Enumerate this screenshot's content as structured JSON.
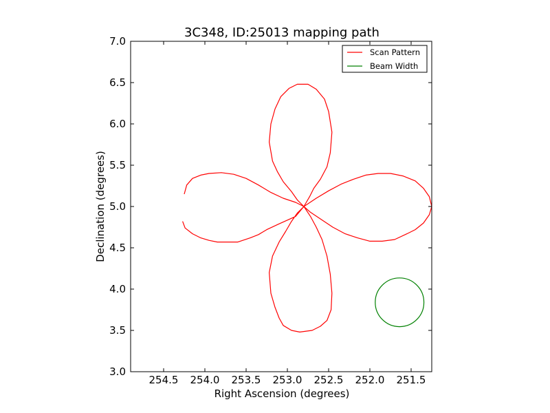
{
  "chart_data": {
    "type": "line",
    "title": "3C348, ID:25013 mapping path",
    "xlabel": "Right Ascension (degrees)",
    "ylabel": "Declination (degrees)",
    "xlim": [
      254.9,
      251.25
    ],
    "ylim": [
      3.0,
      7.0
    ],
    "x_ticks": [
      254.5,
      254.0,
      253.5,
      253.0,
      252.5,
      252.0,
      251.5
    ],
    "x_tick_labels": [
      "254.5",
      "254.0",
      "253.5",
      "253.0",
      "252.5",
      "252.0",
      "251.5"
    ],
    "y_ticks": [
      3.0,
      3.5,
      4.0,
      4.5,
      5.0,
      5.5,
      6.0,
      6.5,
      7.0
    ],
    "y_tick_labels": [
      "3.0",
      "3.5",
      "4.0",
      "4.5",
      "5.0",
      "5.5",
      "6.0",
      "6.5",
      "7.0"
    ],
    "grid": false,
    "legend_position": "top-right",
    "colors": {
      "scan": "#ff0000",
      "beam": "#008000",
      "axes": "#000000",
      "background": "#ffffff"
    },
    "series": [
      {
        "name": "Scan Pattern",
        "color": "#ff0000",
        "x": [
          254.27,
          254.24,
          254.15,
          254.05,
          253.95,
          253.85,
          253.75,
          253.6,
          253.45,
          253.35,
          253.25,
          253.1,
          252.9,
          252.8,
          252.73,
          252.68,
          252.6,
          252.52,
          252.48,
          252.46,
          252.5,
          252.55,
          252.65,
          252.75,
          252.88,
          252.98,
          253.08,
          253.15,
          253.2,
          253.22,
          253.18,
          253.12,
          253.05,
          252.95,
          252.88,
          252.8,
          252.72,
          252.6,
          252.45,
          252.3,
          252.15,
          252.0,
          251.85,
          251.7,
          251.55,
          251.45,
          251.35,
          251.28,
          251.25,
          251.28,
          251.35,
          251.45,
          251.6,
          251.75,
          251.9,
          252.05,
          252.2,
          252.35,
          252.5,
          252.65,
          252.8,
          252.88,
          252.95,
          253.02,
          253.1,
          253.18,
          253.22,
          253.2,
          253.15,
          253.1,
          253.05,
          252.95,
          252.85,
          252.7,
          252.6,
          252.52,
          252.47,
          252.46,
          252.48,
          252.52,
          252.58,
          252.65,
          252.72,
          252.8,
          252.9,
          253.05,
          253.2,
          253.35,
          253.5,
          253.65,
          253.8,
          253.95,
          254.05,
          254.15,
          254.22,
          254.25
        ],
        "y": [
          4.82,
          4.74,
          4.67,
          4.62,
          4.59,
          4.57,
          4.57,
          4.57,
          4.62,
          4.66,
          4.72,
          4.79,
          4.88,
          5.0,
          5.12,
          5.22,
          5.33,
          5.48,
          5.65,
          5.9,
          6.15,
          6.3,
          6.42,
          6.48,
          6.48,
          6.43,
          6.33,
          6.18,
          6.0,
          5.78,
          5.55,
          5.42,
          5.3,
          5.18,
          5.08,
          5.0,
          4.93,
          4.85,
          4.75,
          4.67,
          4.62,
          4.58,
          4.58,
          4.6,
          4.67,
          4.72,
          4.8,
          4.9,
          5.0,
          5.12,
          5.22,
          5.31,
          5.37,
          5.4,
          5.4,
          5.38,
          5.33,
          5.27,
          5.19,
          5.1,
          5.0,
          4.92,
          4.82,
          4.7,
          4.57,
          4.4,
          4.2,
          3.95,
          3.78,
          3.65,
          3.56,
          3.5,
          3.48,
          3.5,
          3.55,
          3.62,
          3.75,
          3.95,
          4.18,
          4.4,
          4.6,
          4.75,
          4.88,
          5.0,
          5.05,
          5.1,
          5.17,
          5.26,
          5.34,
          5.39,
          5.41,
          5.4,
          5.38,
          5.34,
          5.26,
          5.15
        ]
      },
      {
        "name": "Beam Width",
        "color": "#008000",
        "shape": "circle",
        "center": [
          251.64,
          3.84
        ],
        "radius_deg": 0.295
      }
    ]
  }
}
